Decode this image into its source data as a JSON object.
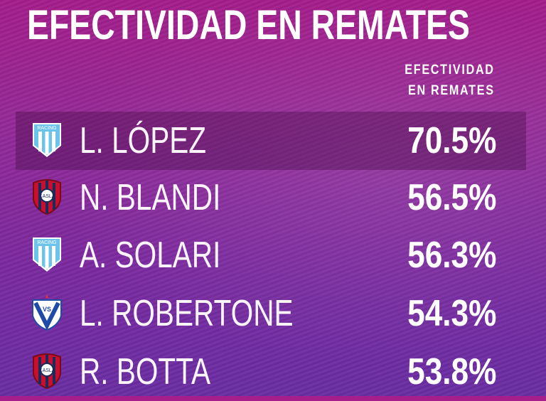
{
  "title": "EFECTIVIDAD EN REMATES",
  "column_header": {
    "line1": "EFECTIVIDAD",
    "line2": "EN REMATES"
  },
  "colors": {
    "racing": "#6cc4ec",
    "san_lorenzo_red": "#c8102e",
    "san_lorenzo_blue": "#1b2a5c",
    "velez": "#1f4aa8"
  },
  "rows": [
    {
      "club_icon": "racing-crest-icon",
      "badge_text": "RACING",
      "player": "L. LÓPEZ",
      "value": "70.5%",
      "highlighted": true
    },
    {
      "club_icon": "san-lorenzo-crest-icon",
      "badge_text": "",
      "player": "N. BLANDI",
      "value": "56.5%",
      "highlighted": false
    },
    {
      "club_icon": "racing-crest-icon",
      "badge_text": "RACING",
      "player": "A. SOLARI",
      "value": "56.3%",
      "highlighted": false
    },
    {
      "club_icon": "velez-crest-icon",
      "badge_text": "",
      "player": "L. ROBERTONE",
      "value": "54.3%",
      "highlighted": false
    },
    {
      "club_icon": "san-lorenzo-crest-icon",
      "badge_text": "",
      "player": "R. BOTTA",
      "value": "53.8%",
      "highlighted": false
    }
  ]
}
